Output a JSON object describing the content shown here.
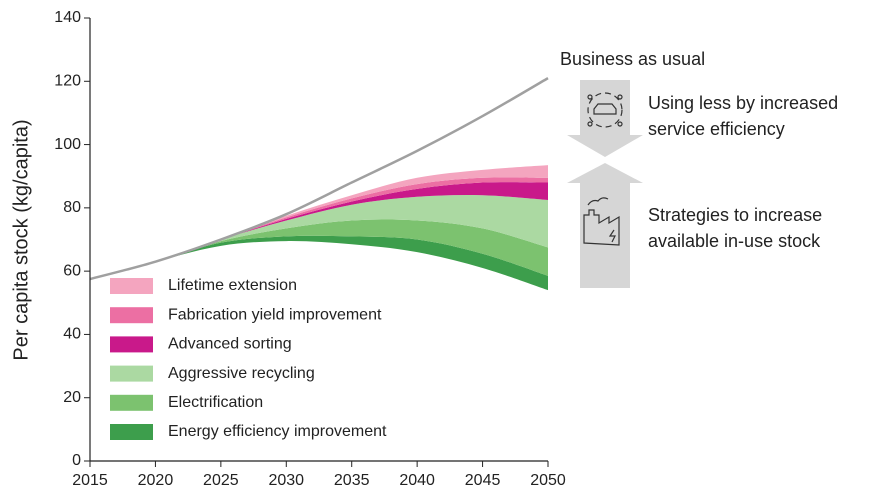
{
  "chart_data": {
    "type": "area",
    "y_label": "Per capita stock (kg/capita)",
    "x": [
      2015,
      2020,
      2025,
      2030,
      2035,
      2040,
      2045,
      2050
    ],
    "xlim": [
      2015,
      2050
    ],
    "xticks": [
      2015,
      2020,
      2025,
      2030,
      2035,
      2040,
      2045,
      2050
    ],
    "ylim": [
      0,
      140
    ],
    "yticks": [
      0,
      20,
      40,
      60,
      80,
      100,
      120,
      140
    ],
    "baseline": [
      57.5,
      63,
      68,
      69.5,
      68.5,
      66,
      61,
      54
    ],
    "series": [
      {
        "name": "Energy efficiency improvement",
        "color": "#3d9e4c",
        "values": [
          0,
          0,
          1,
          1.5,
          2.5,
          4,
          4.5,
          4.5
        ]
      },
      {
        "name": "Electrification",
        "color": "#7cc26f",
        "values": [
          0,
          0,
          0.5,
          2.5,
          5,
          6,
          8,
          9
        ]
      },
      {
        "name": "Aggressive recycling",
        "color": "#abd9a2",
        "values": [
          0,
          0,
          0.5,
          2.5,
          5,
          7.5,
          10.5,
          15
        ]
      },
      {
        "name": "Advanced sorting",
        "color": "#c9198a",
        "values": [
          0,
          0,
          0,
          0.5,
          1,
          2.5,
          4,
          5.5
        ]
      },
      {
        "name": "Fabrication yield improvement",
        "color": "#ec6fa3",
        "values": [
          0,
          0,
          0,
          0.5,
          1,
          1.5,
          1.5,
          1.5
        ]
      },
      {
        "name": "Lifetime extension",
        "color": "#f4a5bf",
        "values": [
          0,
          0,
          0,
          0.5,
          1,
          2,
          2.5,
          4
        ]
      }
    ],
    "reference": {
      "name": "Business as usual",
      "color": "#a0a0a0",
      "values": [
        57.5,
        63,
        70,
        78,
        88,
        98,
        109,
        121
      ]
    },
    "annotations": {
      "service": [
        "Using less by increased",
        "service efficiency"
      ],
      "stock": [
        "Strategies to increase",
        "available in-use stock"
      ]
    }
  }
}
